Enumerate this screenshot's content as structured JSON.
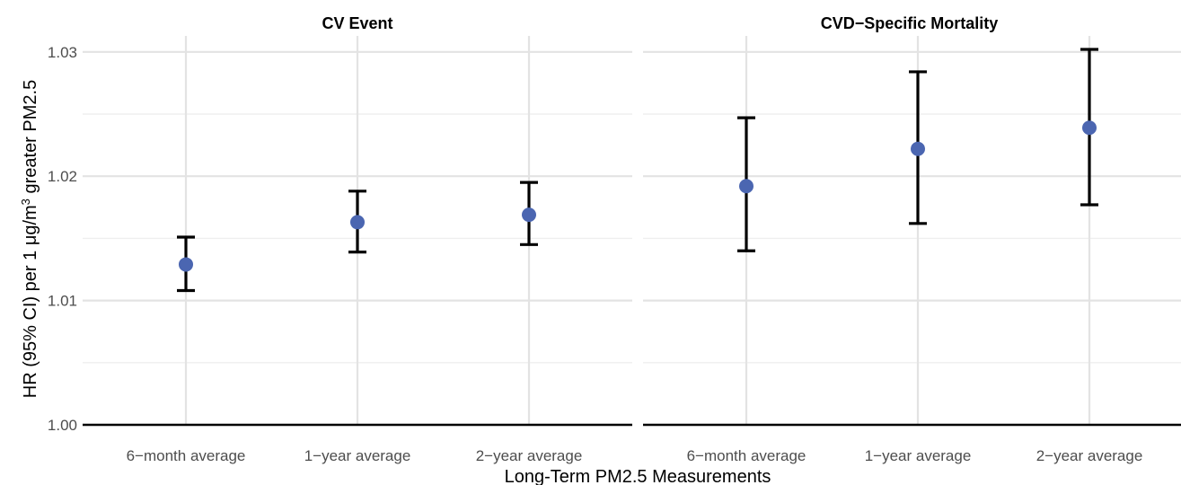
{
  "chart_data": {
    "type": "scatter",
    "subtype": "point-errorbar",
    "xlabel": "Long-Term PM2.5 Measurements",
    "ylabel": {
      "prefix": "HR (95% CI) per 1 μg/m",
      "superscript": "3",
      "suffix": " greater PM2.5"
    },
    "categories": [
      "6−month average",
      "1−year average",
      "2−year average"
    ],
    "ylim": [
      1.0,
      1.03
    ],
    "yticks": [
      1.0,
      1.01,
      1.02,
      1.03
    ],
    "ytick_labels": [
      "1.00",
      "1.01",
      "1.02",
      "1.03"
    ],
    "grid": true,
    "point_color": "#4b66b1",
    "errorbar_color": "#000000",
    "panels": [
      {
        "title": "CV Event",
        "points": [
          {
            "x": "6−month average",
            "y": 1.0129,
            "lower": 1.0108,
            "upper": 1.0151
          },
          {
            "x": "1−year average",
            "y": 1.0163,
            "lower": 1.0139,
            "upper": 1.0188
          },
          {
            "x": "2−year average",
            "y": 1.0169,
            "lower": 1.0145,
            "upper": 1.0195
          }
        ]
      },
      {
        "title": "CVD−Specific Mortality",
        "points": [
          {
            "x": "6−month average",
            "y": 1.0192,
            "lower": 1.014,
            "upper": 1.0247
          },
          {
            "x": "1−year average",
            "y": 1.0222,
            "lower": 1.0162,
            "upper": 1.0284
          },
          {
            "x": "2−year average",
            "y": 1.0239,
            "lower": 1.0177,
            "upper": 1.0302
          }
        ]
      }
    ]
  }
}
